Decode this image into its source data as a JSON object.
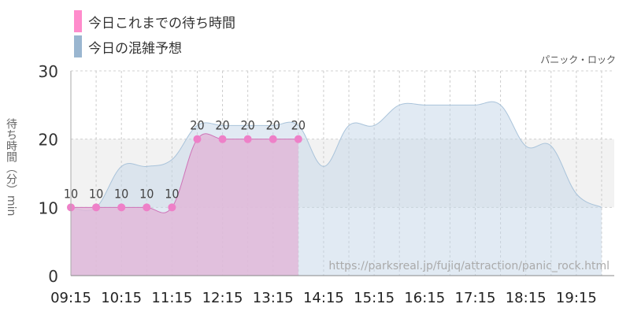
{
  "legend": {
    "today": "今日これまでの待ち時間",
    "forecast": "今日の混雑予想"
  },
  "attraction_name": "パニック・ロック",
  "source_url": "https://parksreal.jp/fujiq/attraction/panic_rock.html",
  "colors": {
    "today_fill": "#e0b8d8",
    "today_line": "#ce74b8",
    "today_marker": "#ee80c8",
    "forecast_fill": "#c3d6e8",
    "forecast_line": "#a9c3da",
    "band": "#f2f2f2",
    "legend_today": "#ff8ccc",
    "legend_forecast": "#9ab6d0"
  },
  "chart_data": {
    "type": "area",
    "ylabel": "待ち時間（分）min",
    "ylim": [
      0,
      30
    ],
    "yticks": [
      0,
      10,
      20,
      30
    ],
    "xticks": [
      "09:15",
      "10:15",
      "11:15",
      "12:15",
      "13:15",
      "14:15",
      "15:15",
      "16:15",
      "17:15",
      "18:15",
      "19:15"
    ],
    "series": [
      {
        "name": "今日これまでの待ち時間",
        "x": [
          "09:15",
          "09:45",
          "10:15",
          "10:45",
          "11:15",
          "11:45",
          "12:15",
          "12:45",
          "13:15",
          "13:45"
        ],
        "values": [
          10,
          10,
          10,
          10,
          10,
          20,
          20,
          20,
          20,
          20
        ]
      },
      {
        "name": "今日の混雑予想",
        "x": [
          "09:15",
          "09:45",
          "10:15",
          "10:45",
          "11:15",
          "11:45",
          "12:15",
          "12:45",
          "13:15",
          "13:45",
          "14:15",
          "14:45",
          "15:15",
          "15:45",
          "16:15",
          "16:45",
          "17:15",
          "17:45",
          "18:15",
          "18:45",
          "19:15",
          "19:45"
        ],
        "values": [
          10,
          10,
          16,
          16,
          17,
          22,
          22,
          22,
          22,
          22,
          16,
          22,
          22,
          25,
          25,
          25,
          25,
          25,
          19,
          19,
          12,
          10
        ]
      }
    ]
  }
}
